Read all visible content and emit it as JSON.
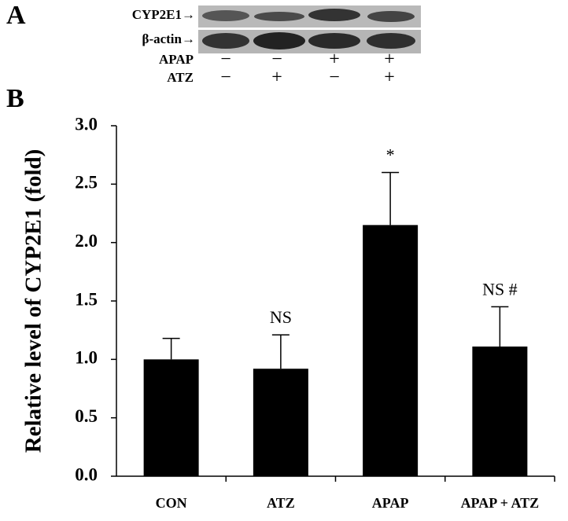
{
  "panels": [
    "A",
    "B"
  ],
  "blot": {
    "rows": [
      "CYP2E1→",
      "β-actin→"
    ],
    "conditions": [
      {
        "name": "APAP",
        "signs": [
          "−",
          "−",
          "+",
          "+"
        ]
      },
      {
        "name": "ATZ",
        "signs": [
          "−",
          "+",
          "−",
          "+"
        ]
      }
    ]
  },
  "chart_data": {
    "type": "bar",
    "ylabel": "Relative level of CYP2E1 (fold)",
    "categories": [
      "CON",
      "ATZ",
      "APAP",
      "APAP + ATZ"
    ],
    "values": [
      1.0,
      0.92,
      2.15,
      1.11
    ],
    "errors": [
      0.18,
      0.29,
      0.45,
      0.34
    ],
    "value_annotations": [
      null,
      "NS",
      "*",
      "NS #"
    ],
    "color": "#000000",
    "ylim": [
      0,
      3
    ],
    "yticks": [
      {
        "value": 0,
        "label": "0.0"
      },
      {
        "value": 0.5,
        "label": "0.5"
      },
      {
        "value": 1,
        "label": "1.0"
      },
      {
        "value": 1.5,
        "label": "1.5"
      },
      {
        "value": 2,
        "label": "2.0"
      },
      {
        "value": 2.5,
        "label": "2.5"
      },
      {
        "value": 3,
        "label": "3.0"
      }
    ],
    "grid": false
  }
}
